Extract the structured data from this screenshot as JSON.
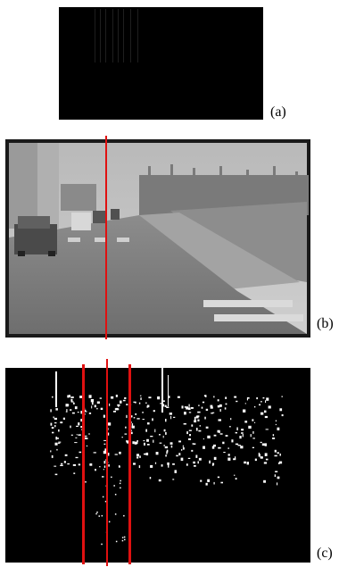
{
  "figure": {
    "panels": [
      {
        "id": "a",
        "label": "(a)",
        "kind": "binary-projection"
      },
      {
        "id": "b",
        "label": "(b)",
        "kind": "grayscale-road-scene"
      },
      {
        "id": "c",
        "label": "(c)",
        "kind": "binary-edge-map"
      }
    ]
  },
  "colors": {
    "marker_line": "#e01010",
    "background": "#ffffff",
    "panel_black": "#000000"
  }
}
